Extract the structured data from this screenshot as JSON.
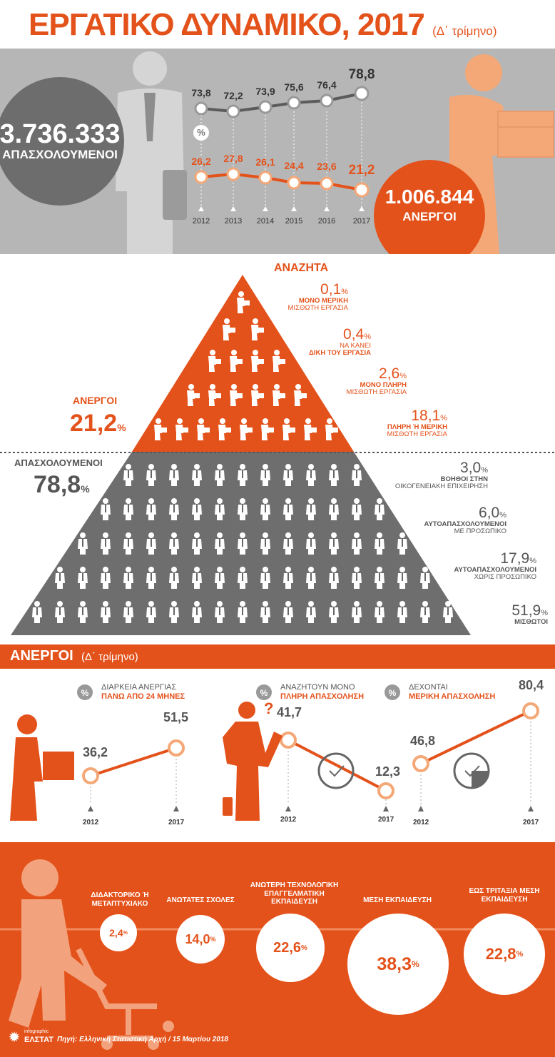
{
  "header": {
    "title": "ΕΡΓΑΤΙΚΟ ΔΥΝΑΜΙΚΟ, 2017",
    "subtitle": "(Δ΄ τρίμηνο)"
  },
  "employed_total": {
    "value": "3.736.333",
    "label": "ΑΠΑΣΧΟΛΟΥΜΕΝΟΙ"
  },
  "unemployed_total": {
    "value": "1.006.844",
    "label": "ΑΝΕΡΓΟΙ"
  },
  "trend": {
    "percent_symbol": "%",
    "years": [
      "2012",
      "2013",
      "2014",
      "2015",
      "2016",
      "2017"
    ],
    "employed": [
      "73,8",
      "72,2",
      "73,9",
      "75,6",
      "76,4",
      "78,8"
    ],
    "unemployed": [
      "26,2",
      "27,8",
      "26,1",
      "24,4",
      "23,6",
      "21,2"
    ]
  },
  "pyramid": {
    "top_label": "ΑΝΑΖΗΤΑ",
    "unemployed_label": "ΑΝΕΡΓΟΙ",
    "unemployed_pct": "21,2",
    "employed_label": "ΑΠΑΣΧΟΛΟΥΜΕΝΟΙ",
    "employed_pct": "78,8",
    "pct_sign": "%",
    "seeking": [
      {
        "pct": "0,1",
        "line1": "ΜΟΝΟ ΜΕΡΙΚΗ",
        "line2": "ΜΙΣΘΩΤΗ ΕΡΓΑΣΙΑ"
      },
      {
        "pct": "0,4",
        "line1": "ΝΑ ΚΑΝΕΙ",
        "line2": "ΔΙΚΗ ΤΟΥ ΕΡΓΑΣΙΑ"
      },
      {
        "pct": "2,6",
        "line1": "ΜΟΝΟ ΠΛΗΡΗ",
        "line2": "ΜΙΣΘΩΤΗ ΕΡΓΑΣΙΑ"
      },
      {
        "pct": "18,1",
        "line1": "ΠΛΗΡΗ Ή ΜΕΡΙΚΗ",
        "line2": "ΜΙΣΘΩΤΗ ΕΡΓΑΣΙΑ"
      }
    ],
    "employed_breakdown": [
      {
        "pct": "3,0",
        "line1": "ΒΟΗΘΟΙ ΣΤΗΝ",
        "line2": "ΟΙΚΟΓΕΝΕΙΑΚΗ ΕΠΙΧΕΙΡΗΣΗ"
      },
      {
        "pct": "6,0",
        "line1": "ΑΥΤΟΑΠΑΣΧΟΛΟΥΜΕΝΟΙ",
        "line2": "ΜΕ ΠΡΟΣΩΠΙΚΟ"
      },
      {
        "pct": "17,9",
        "line1": "ΑΥΤΟΑΠΑΣΧΟΛΟΥΜΕΝΟΙ",
        "line2": "ΧΩΡΙΣ ΠΡΟΣΩΠΙΚΟ"
      },
      {
        "pct": "51,9",
        "line1": "ΜΙΣΘΩΤΟΙ",
        "line2": ""
      }
    ]
  },
  "unemployed_section": {
    "title": "ΑΝΕΡΓΟΙ",
    "subtitle": "(Δ΄ τρίμηνο)",
    "panels": [
      {
        "line1": "ΔΙΑΡΚΕΙΑ ΑΝΕΡΓΙΑΣ",
        "line2": "ΠΑΝΩ ΑΠΟ 24 ΜΗΝΕΣ",
        "v2012": "36,2",
        "v2017": "51,5"
      },
      {
        "line1": "ΑΝΑΖΗΤΟΥΝ ΜΟΝΟ",
        "line2": "ΠΛΗΡΗ ΑΠΑΣΧΟΛΗΣΗ",
        "v2012": "41,7",
        "v2017": "12,3"
      },
      {
        "line1": "ΔΕΧΟΝΤΑΙ",
        "line2": "ΜΕΡΙΚΗ ΑΠΑΣΧΟΛΗΣΗ",
        "v2012": "46,8",
        "v2017": "80,4"
      }
    ],
    "year_start": "2012",
    "year_end": "2017"
  },
  "education": [
    {
      "label": "ΔΙΔΑΚΤΟΡΙΚΟ Ή ΜΕΤΑΠΤΥΧΙΑΚΟ",
      "pct": "2,4"
    },
    {
      "label": "ΑΝΩΤΑΤΕΣ ΣΧΟΛΕΣ",
      "pct": "14,0"
    },
    {
      "label": "ΑΝΩΤΕΡΗ ΤΕΧΝΟΛΟΓΙΚΗ ΕΠΑΓΓΕΛΜΑΤΙΚΗ ΕΚΠΑΙΔΕΥΣΗ",
      "pct": "22,6"
    },
    {
      "label": "ΜΕΣΗ ΕΚΠΑΙΔΕΥΣΗ",
      "pct": "38,3"
    },
    {
      "label": "ΕΩΣ ΤΡΙΤΑΞΙΑ ΜΕΣΗ ΕΚΠΑΙΔΕΥΣΗ",
      "pct": "22,8"
    }
  ],
  "footer": {
    "logo_line1": "infographic",
    "logo_line2": "ΕΛΣΤΑΤ",
    "source": "Πηγή: Ελληνική Στατιστική Αρχή  / 15 Μαρτίου 2018"
  },
  "colors": {
    "orange": "#e4521b",
    "gray": "#b7b6b6",
    "dark_gray": "#666666",
    "light_orange": "#f4a877"
  }
}
